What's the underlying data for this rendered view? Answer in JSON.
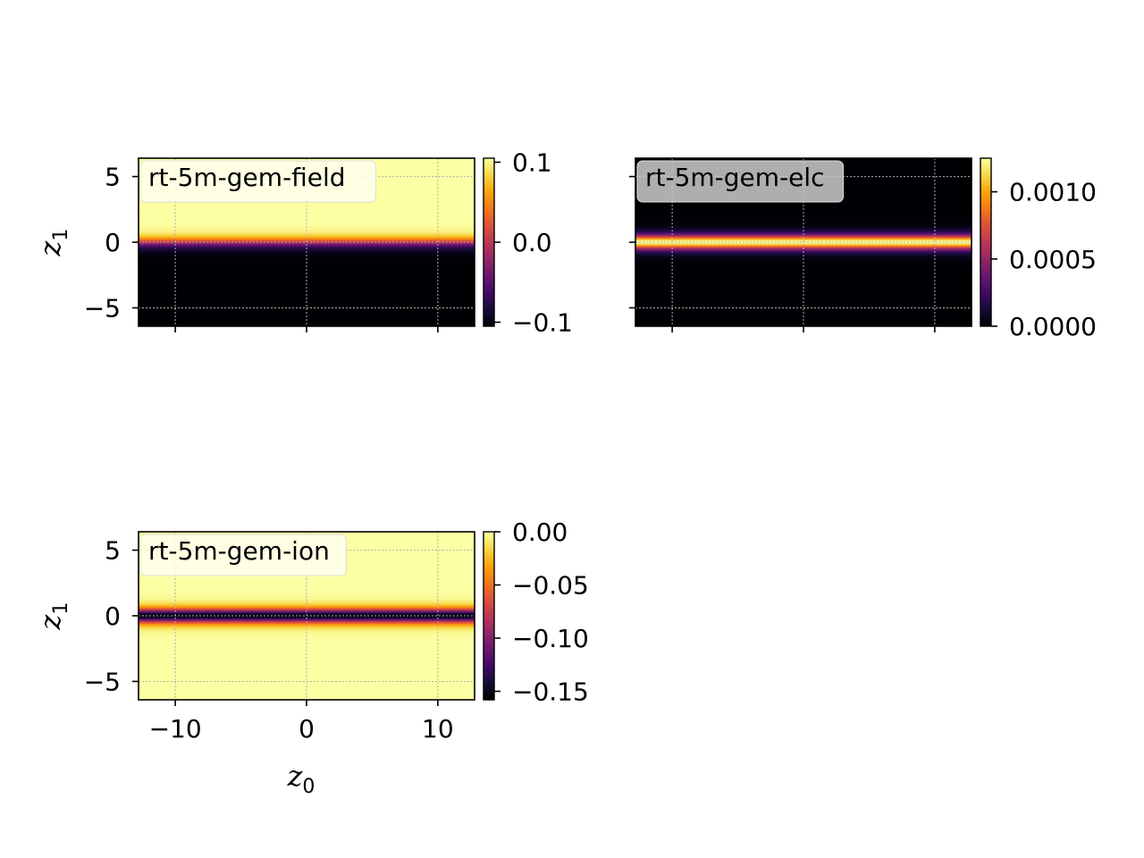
{
  "chart_data": [
    {
      "type": "heatmap",
      "name": "rt-5m-gem-field",
      "xlim": [
        -12.8,
        12.8
      ],
      "ylim": [
        -6.4,
        6.4
      ],
      "xticks": [
        -10,
        0,
        10
      ],
      "yticks": [
        -5,
        0,
        5
      ],
      "ylabel": "z",
      "ylabel_sub": "1",
      "xlabel": "",
      "xlabel_sub": "",
      "show_xticklabels": false,
      "show_yticklabels": true,
      "grid": true,
      "colormap": "inferno",
      "profile": "tanh-step",
      "colorbar": {
        "min": -0.105,
        "max": 0.105,
        "ticks": [
          0.1,
          0.0,
          -0.1
        ],
        "tick_labels": [
          "0.1",
          "0.0",
          "−0.1"
        ]
      },
      "legend_box_color": "#fffff0"
    },
    {
      "type": "heatmap",
      "name": "rt-5m-gem-elc",
      "xlim": [
        -12.8,
        12.8
      ],
      "ylim": [
        -6.4,
        6.4
      ],
      "xticks": [
        -10,
        0,
        10
      ],
      "yticks": [
        -5,
        0,
        5
      ],
      "ylabel": "",
      "ylabel_sub": "",
      "xlabel": "",
      "xlabel_sub": "",
      "show_xticklabels": false,
      "show_yticklabels": false,
      "grid": true,
      "colormap": "inferno",
      "profile": "sech2-peak",
      "colorbar": {
        "min": 0.0,
        "max": 0.00125,
        "ticks": [
          0.001,
          0.0005,
          0.0
        ],
        "tick_labels": [
          "0.0010",
          "0.0005",
          "0.0000"
        ]
      },
      "legend_box_color": "#cccccc"
    },
    {
      "type": "heatmap",
      "name": "rt-5m-gem-ion",
      "xlim": [
        -12.8,
        12.8
      ],
      "ylim": [
        -6.4,
        6.4
      ],
      "xticks": [
        -10,
        0,
        10
      ],
      "yticks": [
        -5,
        0,
        5
      ],
      "ylabel": "z",
      "ylabel_sub": "1",
      "xlabel": "z",
      "xlabel_sub": "0",
      "show_xticklabels": true,
      "show_yticklabels": true,
      "grid": true,
      "colormap": "inferno",
      "profile": "sech2-dip",
      "colorbar": {
        "min": -0.158,
        "max": 0.0,
        "ticks": [
          0.0,
          -0.05,
          -0.1,
          -0.15
        ],
        "tick_labels": [
          "0.00",
          "−0.05",
          "−0.10",
          "−0.15"
        ]
      },
      "legend_box_color": "#fffff0"
    }
  ],
  "tick_labels": {
    "x": [
      "−10",
      "0",
      "10"
    ],
    "y": [
      "−5",
      "0",
      "5"
    ]
  }
}
